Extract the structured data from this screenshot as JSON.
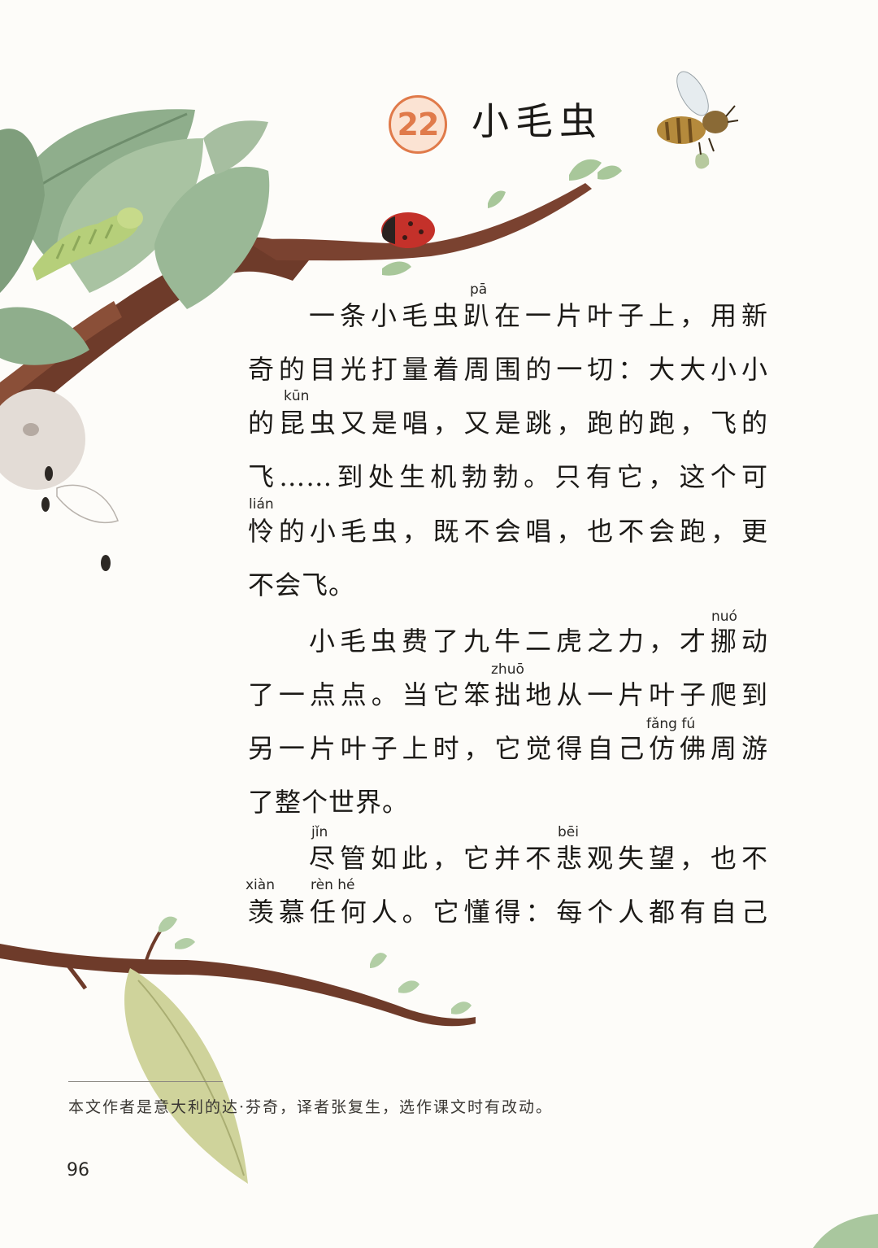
{
  "lesson": {
    "number": "22",
    "title": "小毛虫"
  },
  "paragraphs": [
    {
      "lines": [
        "一条小毛虫趴在一片叶子上，用新",
        "奇的目光打量着周围的一切：大大小小",
        "的昆虫又是唱，又是跳，跑的跑，飞的",
        "飞……到处生机勃勃。只有它，这个可",
        "怜的小毛虫，既不会唱，也不会跑，更",
        "不会飞。"
      ]
    },
    {
      "lines": [
        "小毛虫费了九牛二虎之力，才挪动",
        "了一点点。当它笨拙地从一片叶子爬到",
        "另一片叶子上时，它觉得自己仿佛周游",
        "了整个世界。"
      ]
    },
    {
      "lines": [
        "尽管如此，它并不悲观失望，也不",
        "羡慕任何人。它懂得：每个人都有自己"
      ]
    }
  ],
  "pinyin": {
    "pa": "pā",
    "kun": "kūn",
    "lian": "lián",
    "nuo": "nuó",
    "zhuo": "zhuō",
    "fangfu": "fǎng fú",
    "jin": "jǐn",
    "bei": "bēi",
    "xian": "xiàn",
    "renhe": "rèn hé"
  },
  "footnote": "本文作者是意大利的达·芬奇，译者张复生，选作课文时有改动。",
  "page_number": "96"
}
